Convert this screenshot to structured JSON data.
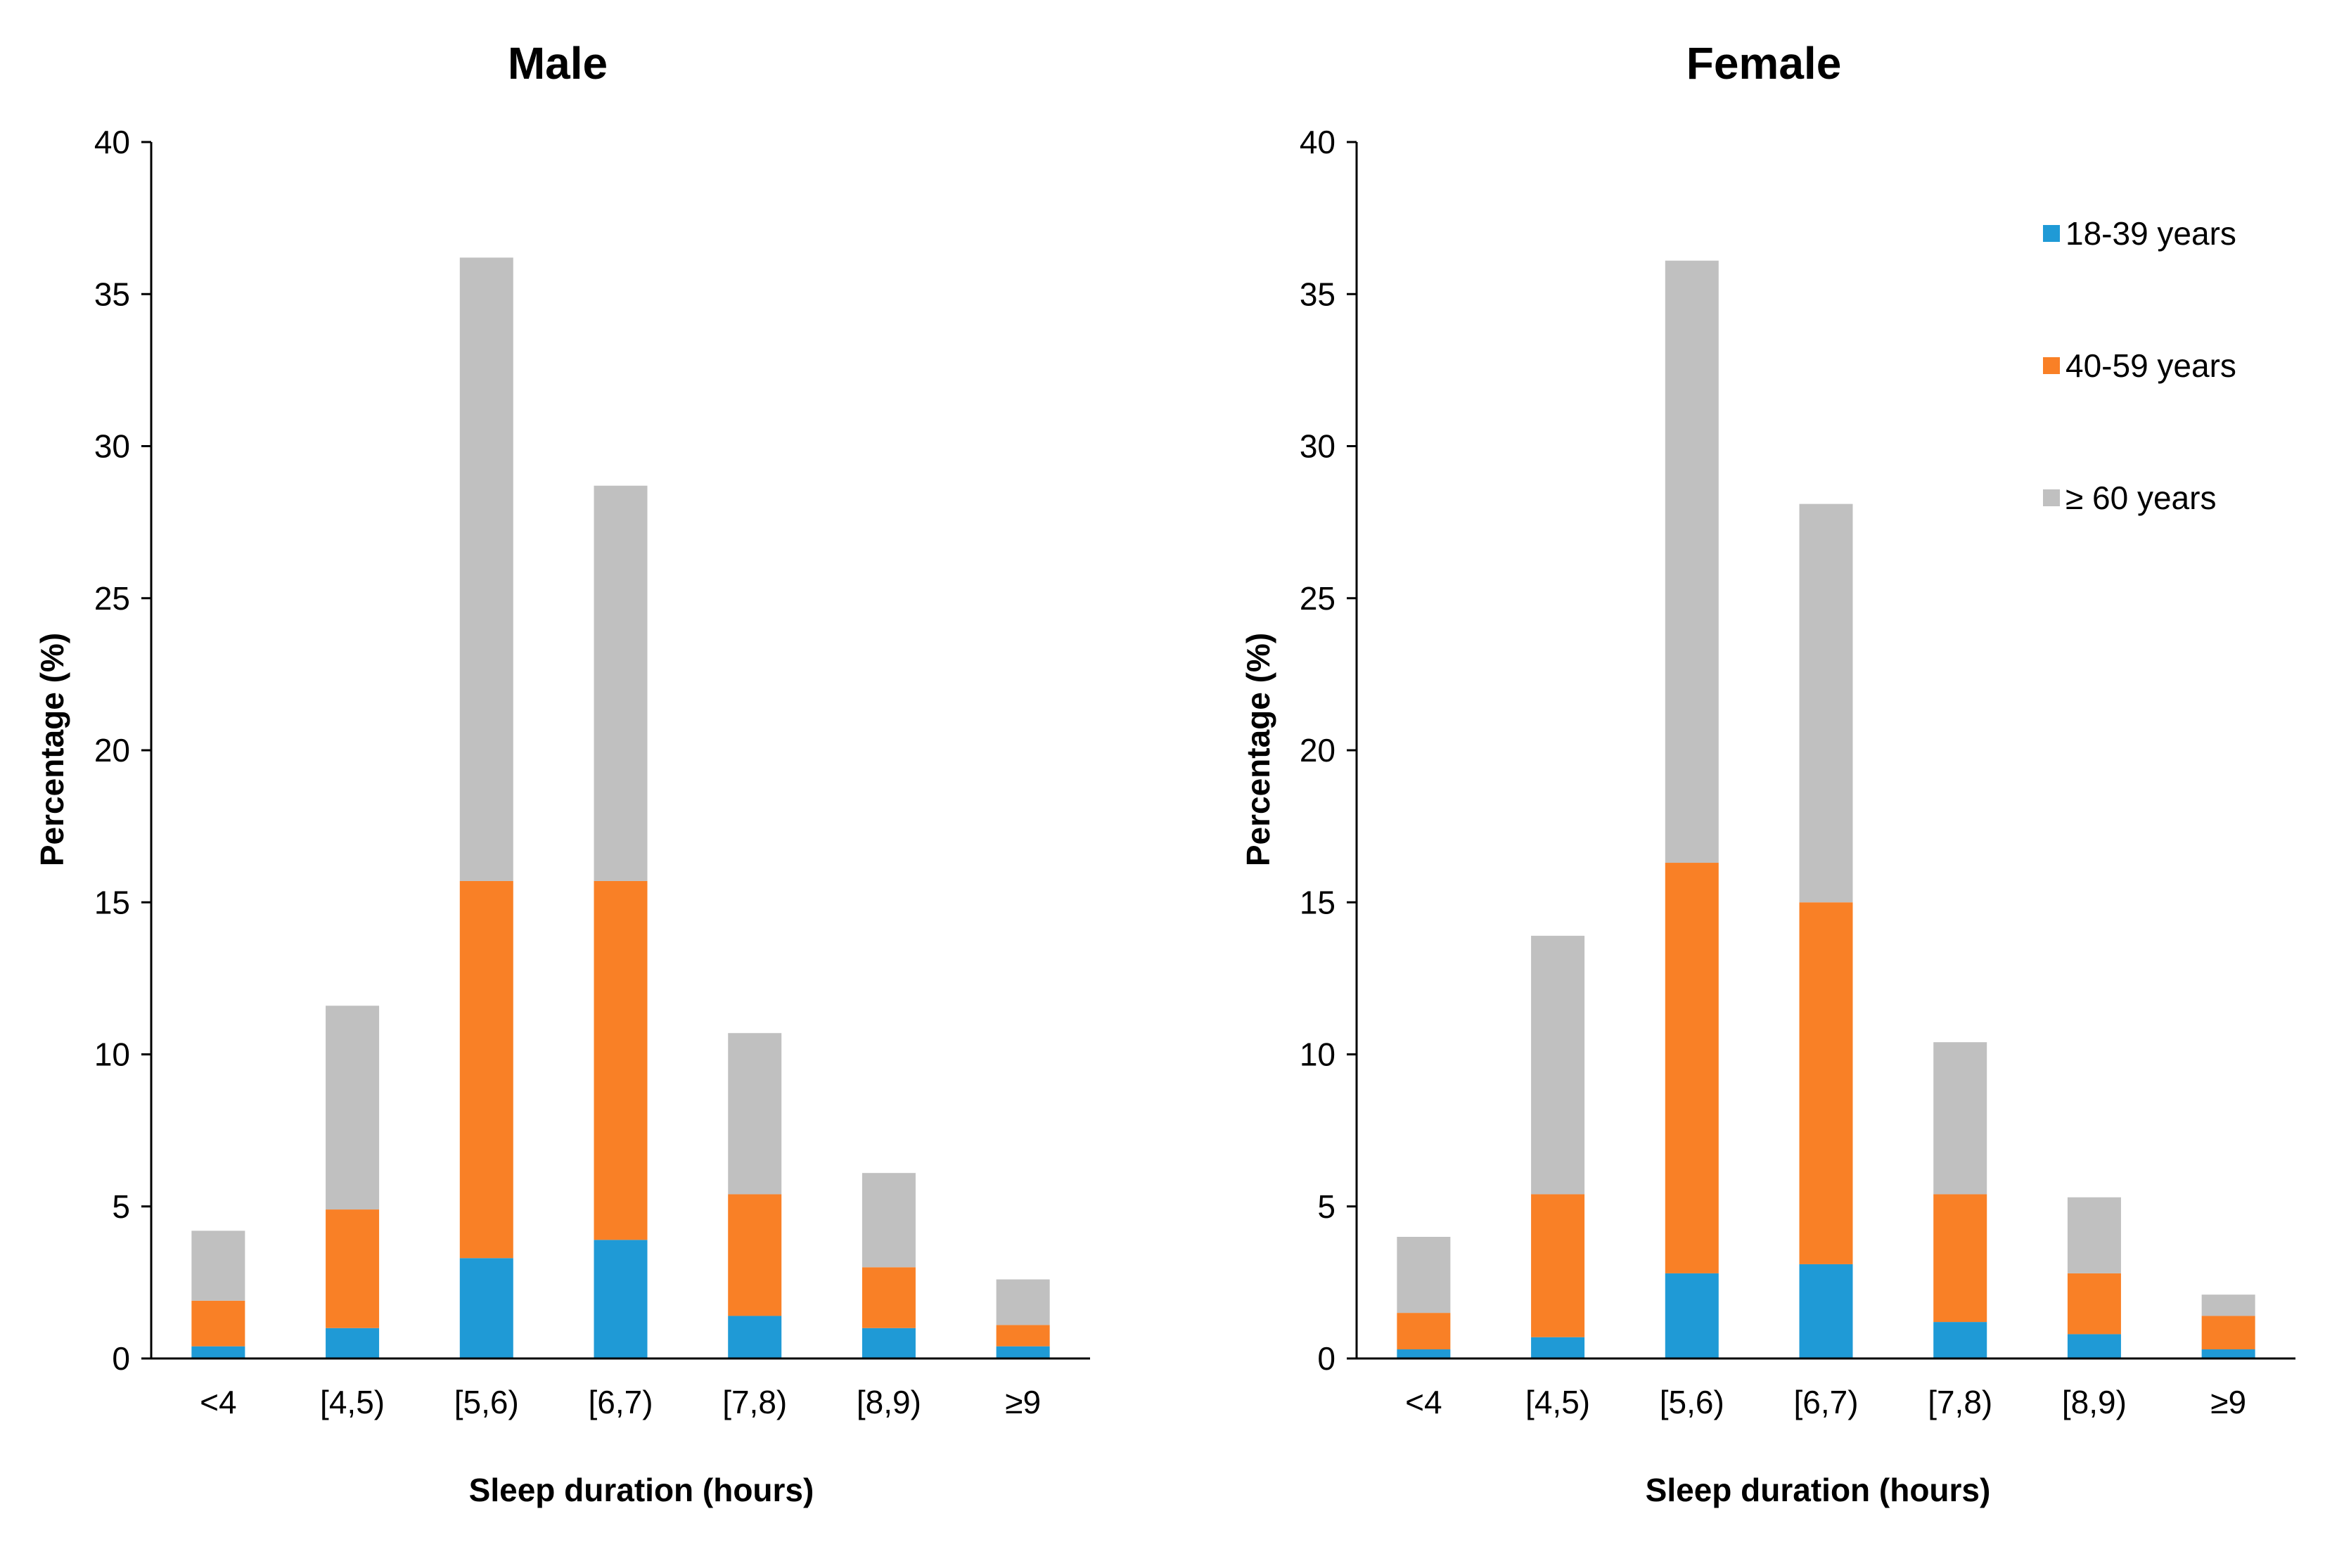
{
  "chart_data": [
    {
      "type": "bar",
      "stacked": true,
      "title": "Male",
      "xlabel": "Sleep duration (hours)",
      "ylabel": "Percentage (%)",
      "ylim": [
        0,
        40
      ],
      "yticks": [
        "0",
        "5",
        "10",
        "15",
        "20",
        "25",
        "30",
        "35",
        "40"
      ],
      "categories": [
        "<4",
        "[4,5)",
        "[5,6)",
        "[6,7)",
        "[7,8)",
        "[8,9)",
        "≥9"
      ],
      "series": [
        {
          "name": "18-39 years",
          "color": "#1f9ad6",
          "values": [
            0.4,
            1.0,
            3.3,
            3.9,
            1.4,
            1.0,
            0.4
          ]
        },
        {
          "name": "40-59 years",
          "color": "#f98026",
          "values": [
            1.5,
            3.9,
            12.4,
            11.8,
            4.0,
            2.0,
            0.7
          ]
        },
        {
          "name": "≥ 60 years",
          "color": "#c0c0c0",
          "values": [
            2.3,
            6.7,
            20.5,
            13.0,
            5.3,
            3.1,
            1.5
          ]
        }
      ]
    },
    {
      "type": "bar",
      "stacked": true,
      "title": "Female",
      "xlabel": "Sleep duration (hours)",
      "ylabel": "Percentage (%)",
      "ylim": [
        0,
        40
      ],
      "yticks": [
        "0",
        "5",
        "10",
        "15",
        "20",
        "25",
        "30",
        "35",
        "40"
      ],
      "categories": [
        "<4",
        "[4,5)",
        "[5,6)",
        "[6,7)",
        "[7,8)",
        "[8,9)",
        "≥9"
      ],
      "legend_position": "top-right",
      "series": [
        {
          "name": "18-39 years",
          "color": "#1f9ad6",
          "values": [
            0.3,
            0.7,
            2.8,
            3.1,
            1.2,
            0.8,
            0.3
          ]
        },
        {
          "name": "40-59 years",
          "color": "#f98026",
          "values": [
            1.2,
            4.7,
            13.5,
            11.9,
            4.2,
            2.0,
            1.1
          ]
        },
        {
          "name": "≥ 60 years",
          "color": "#c0c0c0",
          "values": [
            2.5,
            8.5,
            19.8,
            13.1,
            5.0,
            2.5,
            0.7
          ]
        }
      ]
    }
  ]
}
